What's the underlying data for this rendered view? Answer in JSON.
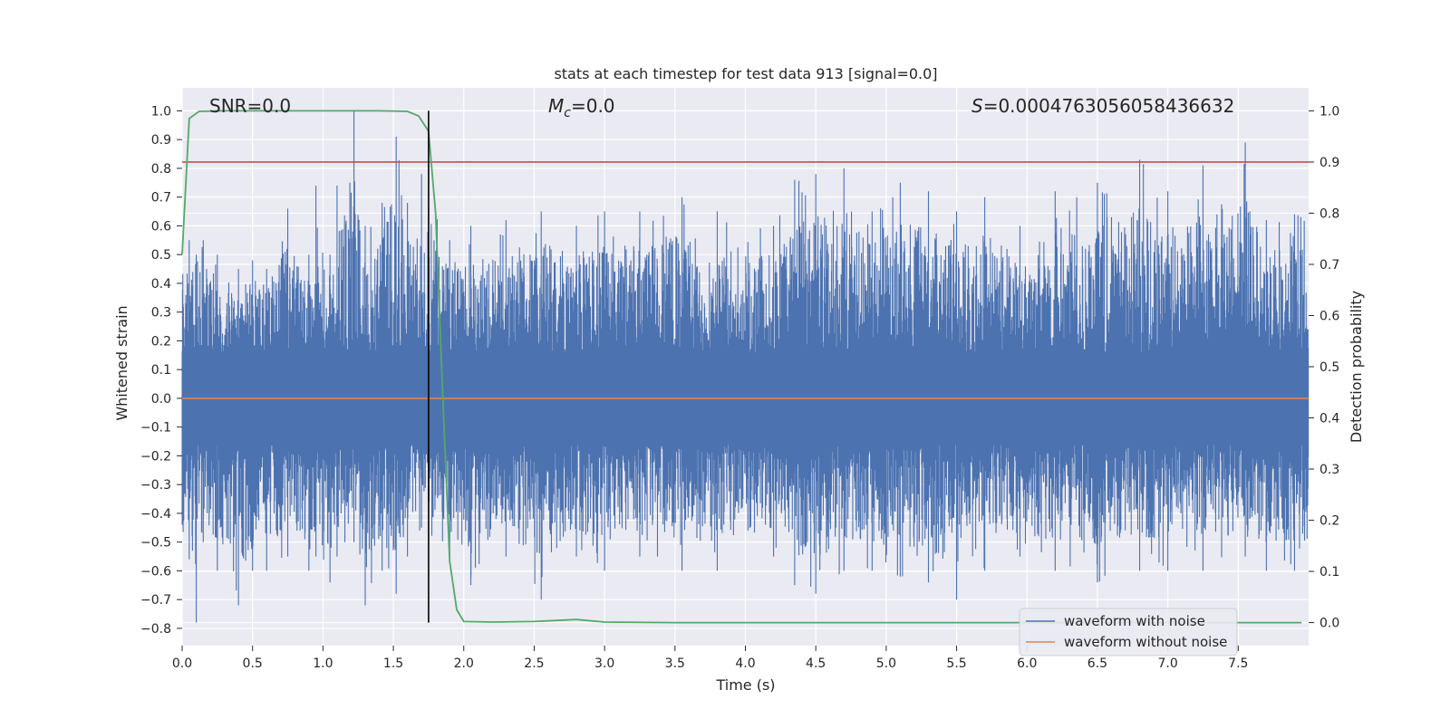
{
  "chart_data": {
    "type": "line",
    "title": "stats at each timestep for test data 913 [signal=0.0]",
    "xlabel": "Time (s)",
    "ylabel": "Whitened strain",
    "ylabel_right": "Detection probability",
    "xlim": [
      0.0,
      8.0
    ],
    "ylim": [
      -0.86,
      1.08
    ],
    "ylim_right": [
      -0.045,
      1.045
    ],
    "xticks": [
      "0.0",
      "0.5",
      "1.0",
      "1.5",
      "2.0",
      "2.5",
      "3.0",
      "3.5",
      "4.0",
      "4.5",
      "5.0",
      "5.5",
      "6.0",
      "6.5",
      "7.0",
      "7.5"
    ],
    "yticks": [
      "1.0",
      "0.9",
      "0.8",
      "0.7",
      "0.6",
      "0.5",
      "0.4",
      "0.3",
      "0.2",
      "0.1",
      "0.0",
      "−0.1",
      "−0.2",
      "−0.3",
      "−0.4",
      "−0.5",
      "−0.6",
      "−0.7",
      "−0.8"
    ],
    "yticks_right": [
      "1.0",
      "0.9",
      "0.8",
      "0.7",
      "0.6",
      "0.5",
      "0.4",
      "0.3",
      "0.2",
      "0.1",
      "0.0"
    ],
    "annotations": {
      "snr": "SNR=0.0",
      "mc_symbol": "M",
      "mc_sub": "c",
      "mc_value": "=0.0",
      "s_symbol": "S",
      "s_value": "=0.0004763056058436632"
    },
    "threshold_right": 0.9,
    "vertical_marker_x": 1.75,
    "series": [
      {
        "name": "waveform with noise",
        "color": "#4c72b0",
        "envelope_points": [
          {
            "x": 0.05,
            "ymax": 0.55,
            "ymin": -0.56
          },
          {
            "x": 0.1,
            "ymax": 0.5,
            "ymin": -0.78
          },
          {
            "x": 0.15,
            "ymax": 0.55,
            "ymin": -0.5
          },
          {
            "x": 0.25,
            "ymax": 0.5,
            "ymin": -0.6
          },
          {
            "x": 0.4,
            "ymax": 0.45,
            "ymin": -0.72
          },
          {
            "x": 0.5,
            "ymax": 0.48,
            "ymin": -0.6
          },
          {
            "x": 0.6,
            "ymax": 0.45,
            "ymin": -0.6
          },
          {
            "x": 0.75,
            "ymax": 0.66,
            "ymin": -0.55
          },
          {
            "x": 0.9,
            "ymax": 0.5,
            "ymin": -0.6
          },
          {
            "x": 0.95,
            "ymax": 0.74,
            "ymin": -0.55
          },
          {
            "x": 1.05,
            "ymax": 0.5,
            "ymin": -0.64
          },
          {
            "x": 1.1,
            "ymax": 0.74,
            "ymin": -0.55
          },
          {
            "x": 1.22,
            "ymax": 1.0,
            "ymin": -0.5
          },
          {
            "x": 1.3,
            "ymax": 0.6,
            "ymin": -0.72
          },
          {
            "x": 1.42,
            "ymax": 0.68,
            "ymin": -0.6
          },
          {
            "x": 1.52,
            "ymax": 0.91,
            "ymin": -0.68
          },
          {
            "x": 1.6,
            "ymax": 0.68,
            "ymin": -0.55
          },
          {
            "x": 1.7,
            "ymax": 0.78,
            "ymin": -0.45
          },
          {
            "x": 1.9,
            "ymax": 0.55,
            "ymin": -0.55
          },
          {
            "x": 2.05,
            "ymax": 0.6,
            "ymin": -0.65
          },
          {
            "x": 2.3,
            "ymax": 0.62,
            "ymin": -0.55
          },
          {
            "x": 2.55,
            "ymax": 0.65,
            "ymin": -0.7
          },
          {
            "x": 2.8,
            "ymax": 0.6,
            "ymin": -0.55
          },
          {
            "x": 3.0,
            "ymax": 0.65,
            "ymin": -0.6
          },
          {
            "x": 3.25,
            "ymax": 0.65,
            "ymin": -0.55
          },
          {
            "x": 3.55,
            "ymax": 0.7,
            "ymin": -0.6
          },
          {
            "x": 3.8,
            "ymax": 0.65,
            "ymin": -0.6
          },
          {
            "x": 4.2,
            "ymax": 0.6,
            "ymin": -0.55
          },
          {
            "x": 4.35,
            "ymax": 0.76,
            "ymin": -0.65
          },
          {
            "x": 4.5,
            "ymax": 0.78,
            "ymin": -0.68
          },
          {
            "x": 4.7,
            "ymax": 0.8,
            "ymin": -0.6
          },
          {
            "x": 4.9,
            "ymax": 0.65,
            "ymin": -0.6
          },
          {
            "x": 5.1,
            "ymax": 0.75,
            "ymin": -0.62
          },
          {
            "x": 5.3,
            "ymax": 0.72,
            "ymin": -0.64
          },
          {
            "x": 5.5,
            "ymax": 0.65,
            "ymin": -0.7
          },
          {
            "x": 5.7,
            "ymax": 0.7,
            "ymin": -0.6
          },
          {
            "x": 5.95,
            "ymax": 0.6,
            "ymin": -0.55
          },
          {
            "x": 6.2,
            "ymax": 0.72,
            "ymin": -0.6
          },
          {
            "x": 6.5,
            "ymax": 0.75,
            "ymin": -0.64
          },
          {
            "x": 6.8,
            "ymax": 0.83,
            "ymin": -0.6
          },
          {
            "x": 7.0,
            "ymax": 0.72,
            "ymin": -0.6
          },
          {
            "x": 7.25,
            "ymax": 0.81,
            "ymin": -0.6
          },
          {
            "x": 7.55,
            "ymax": 0.89,
            "ymin": -0.55
          },
          {
            "x": 7.7,
            "ymax": 0.62,
            "ymin": -0.6
          },
          {
            "x": 7.9,
            "ymax": 0.64,
            "ymin": -0.6
          }
        ]
      },
      {
        "name": "waveform without noise",
        "color": "#dd8452",
        "x": [
          0.0,
          8.0
        ],
        "y": [
          0.0,
          0.0
        ]
      },
      {
        "color": "#55a868",
        "axis": "right",
        "x": [
          0.0,
          0.05,
          0.12,
          0.3,
          0.6,
          1.0,
          1.4,
          1.6,
          1.68,
          1.75,
          1.8,
          1.85,
          1.9,
          1.95,
          2.0,
          2.2,
          2.5,
          2.8,
          3.0,
          3.5,
          4.0,
          5.0,
          6.0,
          7.0,
          7.95
        ],
        "y": [
          0.72,
          0.985,
          0.999,
          1.0,
          1.0,
          1.0,
          1.0,
          0.999,
          0.99,
          0.96,
          0.8,
          0.45,
          0.12,
          0.025,
          0.002,
          0.001,
          0.002,
          0.006,
          0.001,
          0.0,
          0.0,
          0.0,
          0.0,
          0.0,
          0.0
        ]
      }
    ],
    "grid": true,
    "legend": "lower-right",
    "colors": {
      "plot_background": "#eaeaf2",
      "grid": "#ffffff",
      "threshold": "#c44e52",
      "marker": "#000000"
    }
  }
}
